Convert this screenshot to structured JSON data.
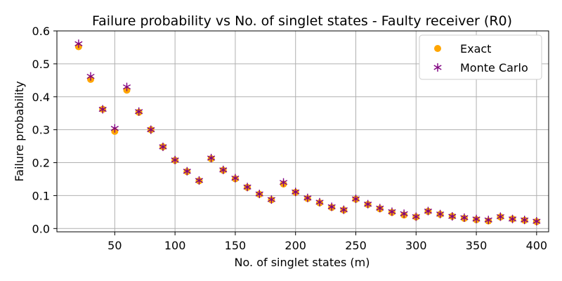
{
  "chart_data": {
    "type": "scatter",
    "title": "Failure probability vs No. of singlet states - Faulty receiver (R0)",
    "xlabel": "No. of singlet states (m)",
    "ylabel": "Failure probability",
    "xlim": [
      2,
      410
    ],
    "ylim": [
      -0.01,
      0.6
    ],
    "xticks": [
      50,
      100,
      150,
      200,
      250,
      300,
      350,
      400
    ],
    "yticks": [
      0.0,
      0.1,
      0.2,
      0.3,
      0.4,
      0.5,
      0.6
    ],
    "ytick_labels": [
      "0.0",
      "0.1",
      "0.2",
      "0.3",
      "0.4",
      "0.5",
      "0.6"
    ],
    "grid": true,
    "legend_position": "top-right",
    "x": [
      20,
      30,
      40,
      50,
      60,
      70,
      80,
      90,
      100,
      110,
      120,
      130,
      140,
      150,
      160,
      170,
      180,
      190,
      200,
      210,
      220,
      230,
      240,
      250,
      260,
      270,
      280,
      290,
      300,
      310,
      320,
      330,
      340,
      350,
      360,
      370,
      380,
      390,
      400
    ],
    "series": [
      {
        "name": "Exact",
        "marker": "circle",
        "color": "#FFA500",
        "values": [
          0.552,
          0.453,
          0.362,
          0.295,
          0.42,
          0.353,
          0.3,
          0.248,
          0.207,
          0.173,
          0.145,
          0.212,
          0.177,
          0.151,
          0.125,
          0.104,
          0.087,
          0.135,
          0.11,
          0.091,
          0.078,
          0.064,
          0.056,
          0.089,
          0.073,
          0.06,
          0.049,
          0.041,
          0.035,
          0.052,
          0.043,
          0.037,
          0.031,
          0.027,
          0.023,
          0.035,
          0.029,
          0.025,
          0.021
        ]
      },
      {
        "name": "Monte Carlo",
        "marker": "asterisk",
        "color": "#800080",
        "values": [
          0.561,
          0.462,
          0.362,
          0.304,
          0.43,
          0.355,
          0.3,
          0.248,
          0.208,
          0.174,
          0.146,
          0.214,
          0.178,
          0.153,
          0.126,
          0.105,
          0.088,
          0.14,
          0.111,
          0.093,
          0.08,
          0.066,
          0.057,
          0.09,
          0.074,
          0.062,
          0.051,
          0.045,
          0.036,
          0.053,
          0.044,
          0.037,
          0.033,
          0.029,
          0.026,
          0.036,
          0.029,
          0.026,
          0.022
        ]
      }
    ]
  }
}
